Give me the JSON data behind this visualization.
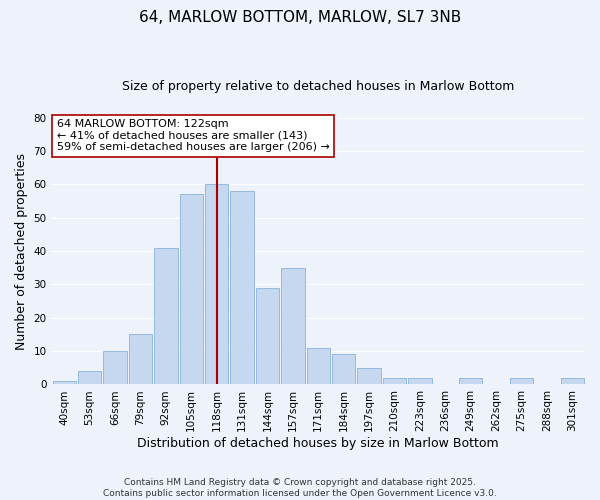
{
  "title": "64, MARLOW BOTTOM, MARLOW, SL7 3NB",
  "subtitle": "Size of property relative to detached houses in Marlow Bottom",
  "xlabel": "Distribution of detached houses by size in Marlow Bottom",
  "ylabel": "Number of detached properties",
  "bar_color": "#c5d8f0",
  "bar_edge_color": "#8ab4d8",
  "background_color": "#edf2fb",
  "grid_color": "#ffffff",
  "categories": [
    "40sqm",
    "53sqm",
    "66sqm",
    "79sqm",
    "92sqm",
    "105sqm",
    "118sqm",
    "131sqm",
    "144sqm",
    "157sqm",
    "171sqm",
    "184sqm",
    "197sqm",
    "210sqm",
    "223sqm",
    "236sqm",
    "249sqm",
    "262sqm",
    "275sqm",
    "288sqm",
    "301sqm"
  ],
  "values": [
    1,
    4,
    10,
    15,
    41,
    57,
    60,
    58,
    29,
    35,
    11,
    9,
    5,
    2,
    2,
    0,
    2,
    0,
    2,
    0,
    2
  ],
  "ylim": [
    0,
    80
  ],
  "yticks": [
    0,
    10,
    20,
    30,
    40,
    50,
    60,
    70,
    80
  ],
  "vline_x_index": 6,
  "vline_color": "#aa0000",
  "annotation_line1": "64 MARLOW BOTTOM: 122sqm",
  "annotation_line2": "← 41% of detached houses are smaller (143)",
  "annotation_line3": "59% of semi-detached houses are larger (206) →",
  "annotation_box_color": "#ffffff",
  "annotation_box_edge": "#aa0000",
  "footer_line1": "Contains HM Land Registry data © Crown copyright and database right 2025.",
  "footer_line2": "Contains public sector information licensed under the Open Government Licence v3.0.",
  "title_fontsize": 11,
  "subtitle_fontsize": 9,
  "xlabel_fontsize": 9,
  "ylabel_fontsize": 9,
  "tick_fontsize": 7.5,
  "annotation_fontsize": 8,
  "footer_fontsize": 6.5
}
